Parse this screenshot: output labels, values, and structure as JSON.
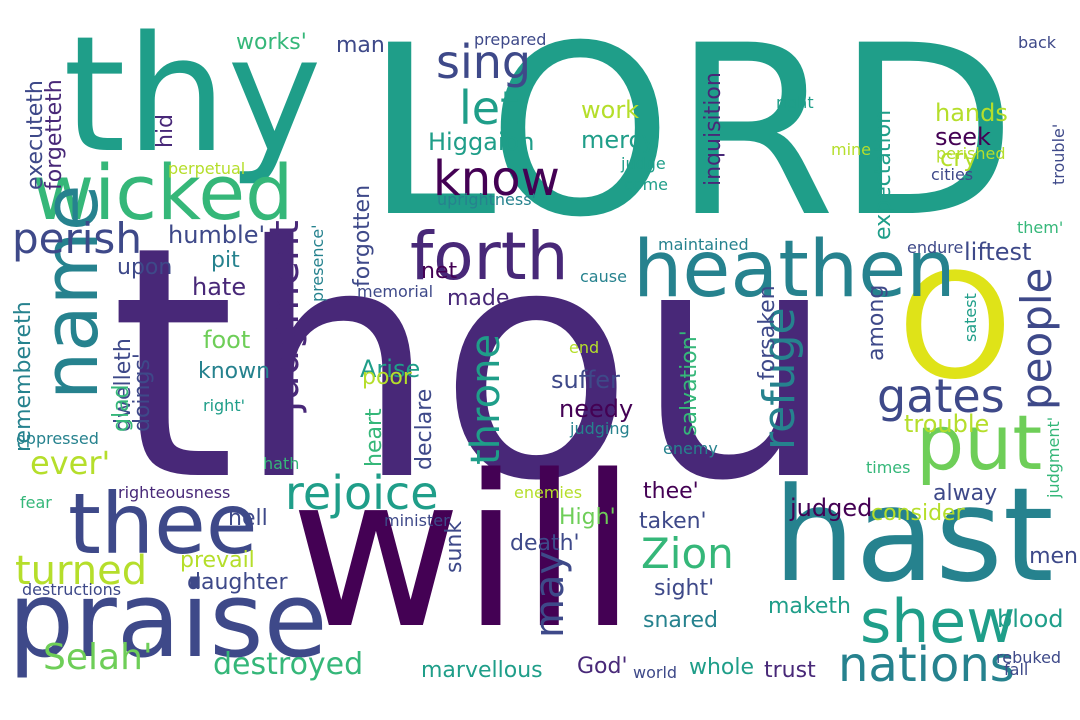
{
  "palette": {
    "purple": "#440154",
    "indigo": "#482878",
    "slate": "#3e4989",
    "blue": "#31688e",
    "teal": "#26828e",
    "cyan": "#1f9e89",
    "green": "#35b779",
    "lime": "#6ece58",
    "yellowgreen": "#b5de2b",
    "yellow": "#dfe318"
  },
  "words": {
    "thou": "thou",
    "lord": "LORD",
    "wil": "will",
    "thy": "thy",
    "hast": "hast",
    "o": "O",
    "praise": "praise",
    "thee": "thee",
    "heathen": "heathen",
    "wicked": "wicked",
    "name": "name",
    "put": "put",
    "forth": "forth",
    "shew": "shew",
    "nations": "nations",
    "rejoice": "rejoice",
    "refuge": "refuge",
    "people": "people",
    "judgment": "judgment",
    "throne": "throne",
    "know": "know",
    "perish": "perish",
    "sing": "sing",
    "let": "let",
    "gates": "gates",
    "zion": "Zion",
    "turned": "turned",
    "selah": "Selah'",
    "ever": "ever'",
    "destroyed": "destroyed",
    "may": "may",
    "inquisition": "inquisition",
    "expectation": "expectation",
    "mercy": "mercy",
    "higgaion": "Higgaion",
    "work": "work",
    "works": "works'",
    "man": "man",
    "prepared": "prepared",
    "back": "back",
    "executeth": "executeth",
    "forgetteth": "forgetteth",
    "hid": "hid",
    "humble": "humble'",
    "upon": "upon",
    "hate": "hate",
    "pit": "pit",
    "foot": "foot",
    "forgotten": "forgotten",
    "made": "made",
    "net": "net",
    "among": "among",
    "arise": "Arise",
    "poor": "poor",
    "known": "known",
    "dwelleth": "dwelleth",
    "doings": "doings'",
    "glad": "glad",
    "remembereth": "remembereth",
    "forsaken": "forsaken",
    "declare": "declare",
    "heart": "heart",
    "suffer": "suffer",
    "needy": "needy",
    "salvation": "salvation'",
    "trouble": "trouble",
    "seek": "seek",
    "hands": "hands",
    "cry": "cry",
    "liftest": "liftest",
    "endure": "endure",
    "alway": "alway",
    "consider": "consider",
    "judged": "judged",
    "thee2": "thee'",
    "taken": "taken'",
    "high": "High'",
    "death": "death'",
    "sunk": "sunk",
    "hell": "hell",
    "prevail": "prevail",
    "daughter": "daughter",
    "sight": "sight'",
    "snared": "snared",
    "maketh": "maketh",
    "blood": "blood",
    "marvellous": "marvellous",
    "god": "God'",
    "whole": "whole",
    "trust": "trust",
    "world": "world",
    "rebuked": "rebuked",
    "fall": "fall",
    "men": "men",
    "destructions": "destructions",
    "righteousness": "righteousness",
    "minister": "minister",
    "fear": "fear",
    "enemies": "enemies",
    "oppressed": "oppressed",
    "right": "right",
    "right2": "right'",
    "hath": "hath",
    "judging": "judging",
    "enemy": "enemy",
    "times": "times",
    "judgment2": "judgment'",
    "end": "end",
    "satest": "satest",
    "memorial": "memorial",
    "presence": "presence'",
    "cause": "cause",
    "maintained": "maintained",
    "them": "them'",
    "perished": "perished",
    "cities": "cities",
    "trouble2": "trouble'",
    "mine": "mine",
    "come": "come",
    "judge": "judge",
    "uprightness": "uprightness'",
    "perpetual": "perpetual"
  }
}
